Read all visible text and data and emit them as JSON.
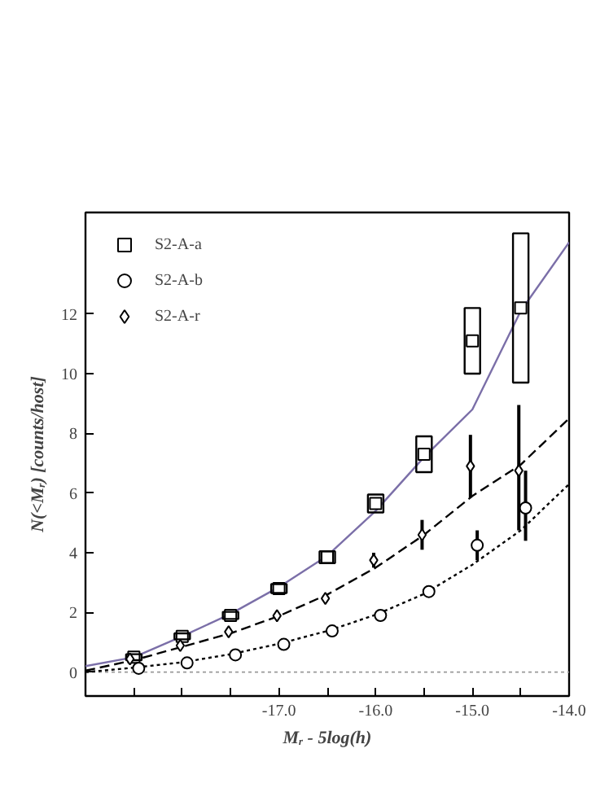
{
  "chart_data": {
    "type": "scatter",
    "xlabel": "Mᵣ - 5log(h)",
    "ylabel": "N(<Mᵣ) [counts/host]",
    "xlim": [
      -19.0,
      -14.0
    ],
    "ylim": [
      -0.8,
      15.4
    ],
    "xticks": [
      {
        "value": -18.5,
        "label": null
      },
      {
        "value": -18.0,
        "label": null
      },
      {
        "value": -17.5,
        "label": null
      },
      {
        "value": -17.0,
        "label": "-17.0"
      },
      {
        "value": -16.5,
        "label": null
      },
      {
        "value": -16.0,
        "label": "-16.0"
      },
      {
        "value": -15.5,
        "label": null
      },
      {
        "value": -15.0,
        "label": "-15.0"
      },
      {
        "value": -14.5,
        "label": null
      },
      {
        "value": -14.0,
        "label": "-14.0"
      }
    ],
    "yticks": [
      0,
      2,
      4,
      6,
      8,
      10,
      12
    ],
    "grid": false,
    "legend": "top left",
    "ref_lines": [
      {
        "axis": "y",
        "value": 0,
        "color": "#999999",
        "line_style": "dotted"
      }
    ],
    "series": [
      {
        "type": "line",
        "color": "#7b6fa8",
        "line_style": "solid",
        "x": [
          -19.0,
          -18.5,
          -18.0,
          -17.5,
          -17.0,
          -16.5,
          -16.0,
          -15.5,
          -15.0,
          -14.5,
          -14.0
        ],
        "values": [
          0.2,
          0.5,
          1.2,
          1.95,
          2.85,
          3.9,
          5.4,
          7.2,
          8.8,
          12.1,
          14.4
        ]
      },
      {
        "type": "line",
        "color": "#000000",
        "line_style": "dashed",
        "x": [
          -19.0,
          -18.5,
          -18.0,
          -17.5,
          -17.0,
          -16.5,
          -16.0,
          -15.5,
          -15.0,
          -14.5,
          -14.0
        ],
        "values": [
          0.05,
          0.4,
          0.85,
          1.3,
          1.88,
          2.6,
          3.5,
          4.6,
          5.9,
          6.95,
          8.5
        ]
      },
      {
        "type": "line",
        "color": "#000000",
        "line_style": "dotted",
        "x": [
          -19.0,
          -18.5,
          -18.0,
          -17.5,
          -17.0,
          -16.5,
          -16.0,
          -15.5,
          -15.0,
          -14.5,
          -14.0
        ],
        "values": [
          0.0,
          0.15,
          0.33,
          0.6,
          0.95,
          1.38,
          1.92,
          2.62,
          3.6,
          4.75,
          6.3
        ]
      },
      {
        "name": "S2-A-a",
        "color": "#000000",
        "marker": "square",
        "line_style": "none",
        "x": [
          -18.5,
          -18.0,
          -17.5,
          -17.0,
          -16.5,
          -16.0,
          -15.5,
          -15.0,
          -14.5
        ],
        "values": [
          0.5,
          1.2,
          1.9,
          2.8,
          3.85,
          5.65,
          7.3,
          11.1,
          12.2
        ]
      },
      {
        "type": "bar",
        "color": "#000000",
        "x": [
          -18.5,
          -18.0,
          -17.5,
          -17.0,
          -16.5,
          -16.0,
          -15.5,
          -15.0,
          -14.5
        ],
        "base": [
          0.4,
          1.1,
          1.78,
          2.65,
          3.65,
          5.35,
          6.7,
          10.0,
          9.7
        ],
        "values": [
          0.2,
          0.2,
          0.24,
          0.3,
          0.4,
          0.6,
          1.2,
          2.2,
          5.0
        ]
      },
      {
        "name": "S2-A-b",
        "color": "#000000",
        "marker": "circle",
        "line_style": "dotted",
        "x": [
          -18.45,
          -17.95,
          -17.45,
          -16.95,
          -16.45,
          -15.95,
          -15.45,
          -14.95,
          -14.45
        ],
        "values": [
          0.13,
          0.31,
          0.58,
          0.93,
          1.38,
          1.9,
          2.7,
          4.25,
          5.5
        ],
        "errors": [
          null,
          null,
          null,
          null,
          null,
          null,
          0.2,
          [
            3.75,
            4.75
          ],
          [
            4.4,
            6.75
          ]
        ]
      },
      {
        "name": "S2-A-r",
        "color": "#000000",
        "marker": "diamond",
        "line_style": "dashed",
        "x": [
          -18.54,
          -18.02,
          -17.52,
          -17.02,
          -16.52,
          -16.02,
          -15.52,
          -15.02,
          -14.52
        ],
        "values": [
          0.44,
          0.89,
          1.35,
          1.89,
          2.47,
          3.75,
          4.6,
          6.9,
          6.75
        ],
        "errors": [
          null,
          null,
          null,
          null,
          null,
          0.25,
          [
            4.1,
            5.1
          ],
          [
            5.85,
            7.95
          ],
          [
            4.75,
            8.95
          ]
        ]
      }
    ]
  }
}
